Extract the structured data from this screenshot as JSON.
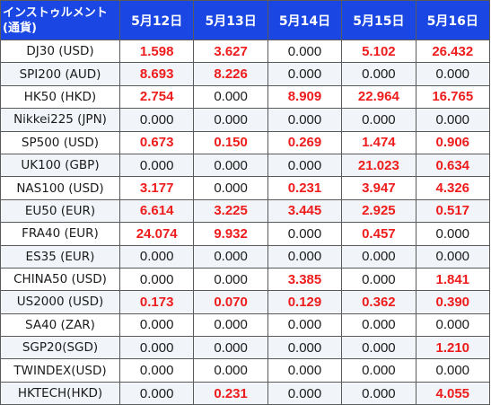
{
  "header": {
    "instrument_line1": "インストゥルメント",
    "instrument_line2": "(通貨)",
    "dates": [
      "5月12日",
      "5月13日",
      "5月14日",
      "5月15日",
      "5月16日"
    ]
  },
  "rows": [
    {
      "name": "DJ30 (USD)",
      "values": [
        "1.598",
        "3.627",
        "0.000",
        "5.102",
        "26.432"
      ]
    },
    {
      "name": "SPI200 (AUD)",
      "values": [
        "8.693",
        "8.226",
        "0.000",
        "0.000",
        "0.000"
      ]
    },
    {
      "name": "HK50 (HKD)",
      "values": [
        "2.754",
        "0.000",
        "8.909",
        "22.964",
        "16.765"
      ]
    },
    {
      "name": "Nikkei225 (JPN)",
      "values": [
        "0.000",
        "0.000",
        "0.000",
        "0.000",
        "0.000"
      ]
    },
    {
      "name": "SP500 (USD)",
      "values": [
        "0.673",
        "0.150",
        "0.269",
        "1.474",
        "0.906"
      ]
    },
    {
      "name": "UK100 (GBP)",
      "values": [
        "0.000",
        "0.000",
        "0.000",
        "21.023",
        "0.634"
      ]
    },
    {
      "name": "NAS100 (USD)",
      "values": [
        "3.177",
        "0.000",
        "0.231",
        "3.947",
        "4.326"
      ]
    },
    {
      "name": "EU50 (EUR)",
      "values": [
        "6.614",
        "3.225",
        "3.445",
        "2.925",
        "0.517"
      ]
    },
    {
      "name": "FRA40 (EUR)",
      "values": [
        "24.074",
        "9.932",
        "0.000",
        "0.457",
        "0.000"
      ]
    },
    {
      "name": "ES35 (EUR)",
      "values": [
        "0.000",
        "0.000",
        "0.000",
        "0.000",
        "0.000"
      ]
    },
    {
      "name": "CHINA50 (USD)",
      "values": [
        "0.000",
        "0.000",
        "3.385",
        "0.000",
        "1.841"
      ]
    },
    {
      "name": "US2000 (USD)",
      "values": [
        "0.173",
        "0.070",
        "0.129",
        "0.362",
        "0.390"
      ]
    },
    {
      "name": "SA40 (ZAR)",
      "values": [
        "0.000",
        "0.000",
        "0.000",
        "0.000",
        "0.000"
      ]
    },
    {
      "name": "SGP20(SGD)",
      "values": [
        "0.000",
        "0.000",
        "0.000",
        "0.000",
        "1.210"
      ]
    },
    {
      "name": "TWINDEX(USD)",
      "values": [
        "0.000",
        "0.000",
        "0.000",
        "0.000",
        "0.000"
      ]
    },
    {
      "name": "HKTECH(HKD)",
      "values": [
        "0.000",
        "0.231",
        "0.000",
        "0.000",
        "4.055"
      ]
    }
  ],
  "colors": {
    "header_bg": "#1a47e3",
    "header_text": "#ffffff",
    "positive_value": "#ee1c1c",
    "zero_value": "#1b1b1b",
    "alt_row_bg": "#f1f4f8"
  }
}
